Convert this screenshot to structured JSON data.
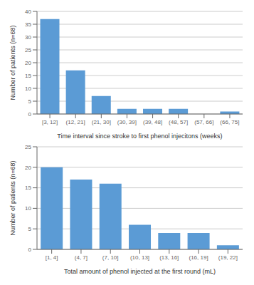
{
  "chart_data": [
    {
      "type": "bar",
      "categories": [
        "[3, 12]",
        "(12, 21]",
        "(21, 30]",
        "(30, 39]",
        "(39, 48]",
        "(48, 57]",
        "(57, 66]",
        "(66, 75]"
      ],
      "values": [
        37,
        17,
        7,
        2,
        2,
        2,
        0,
        1
      ],
      "color": "#5B9BD5",
      "ylabel": "Number of patients (n=68)",
      "xlabel": "Time interval since stroke to first phenol injecitons (weeks)",
      "ylim": [
        0,
        40
      ],
      "yticks": [
        0,
        5,
        10,
        15,
        20,
        25,
        30,
        35,
        40
      ],
      "grid": true
    },
    {
      "type": "bar",
      "categories": [
        "[1, 4]",
        "(4, 7]",
        "(7, 10]",
        "(10, 13]",
        "(13, 16]",
        "(16, 19]",
        "(19, 22]"
      ],
      "values": [
        20,
        17,
        16,
        6,
        4,
        4,
        1
      ],
      "color": "#5B9BD5",
      "ylabel": "Number of patients (n=68)",
      "xlabel": "Total amount of phenol injected at the first round (mL)",
      "ylim": [
        0,
        25
      ],
      "yticks": [
        0,
        5,
        10,
        15,
        20,
        25
      ],
      "grid": true
    }
  ]
}
